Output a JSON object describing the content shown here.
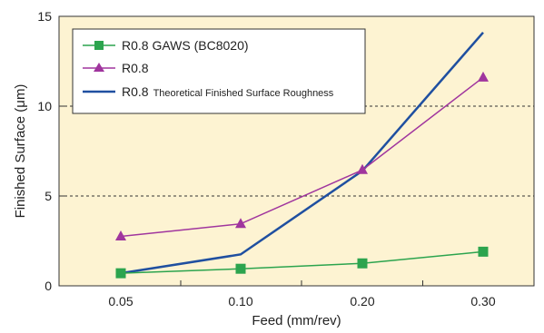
{
  "chart_data": {
    "type": "line",
    "categories": [
      "0.05",
      "0.10",
      "0.20",
      "0.30"
    ],
    "xlabel": "Feed (mm/rev)",
    "ylabel": "Finished Surface (μm)",
    "ylim": [
      0,
      15
    ],
    "yticks": [
      "0",
      "5",
      "10",
      "15"
    ],
    "grid": "dashed horizontal lines at 5 and 10",
    "legend_position": "top-left",
    "background_color": "#fdf3d2",
    "series": [
      {
        "name": "R0.8 GAWS (BC8020)",
        "color": "#2ca44e",
        "marker": "square",
        "values": [
          0.7,
          0.95,
          1.25,
          1.9
        ]
      },
      {
        "name": "R0.8",
        "color": "#a0359e",
        "marker": "triangle",
        "values": [
          2.75,
          3.45,
          6.45,
          11.6
        ]
      },
      {
        "name_main": "R0.8",
        "name_sub": "Theoretical Finished Surface Roughness",
        "color": "#1f4fa0",
        "marker": "none",
        "values": [
          0.7,
          1.75,
          6.4,
          14.1
        ]
      }
    ]
  }
}
